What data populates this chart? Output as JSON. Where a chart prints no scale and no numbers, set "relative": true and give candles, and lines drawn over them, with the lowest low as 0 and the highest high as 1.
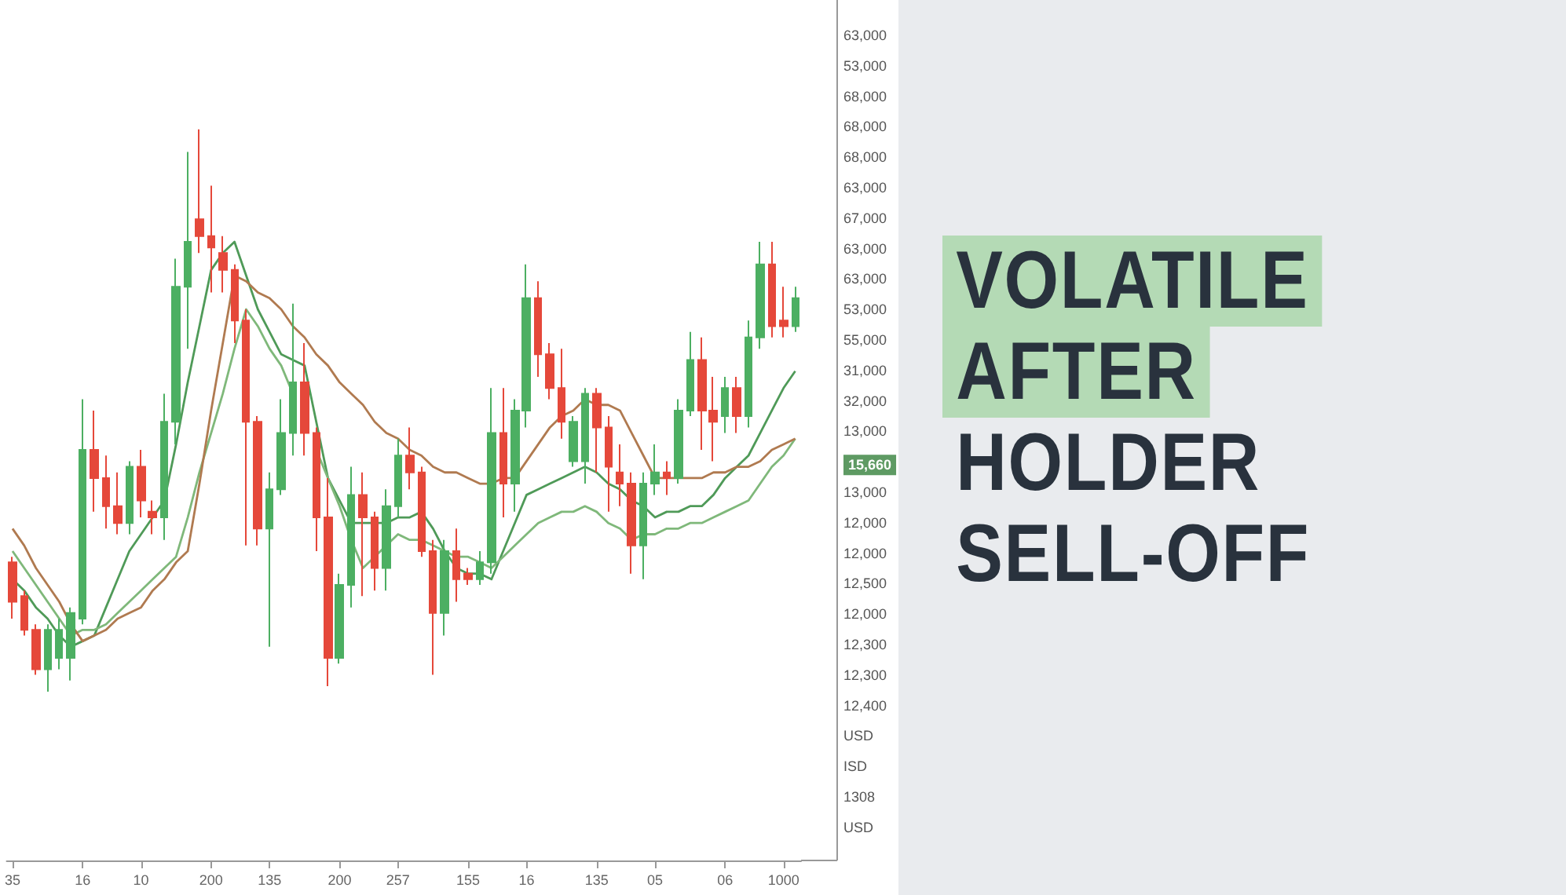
{
  "chart_data": {
    "type": "candlestick",
    "title": "VOLATILE AFTER HOLDER SELL-OFF",
    "relative": true,
    "marker": "none",
    "categories": [
      "35",
      null,
      null,
      null,
      null,
      null,
      "16",
      null,
      null,
      null,
      null,
      "10",
      null,
      null,
      null,
      null,
      null,
      "200",
      null,
      null,
      null,
      null,
      "135",
      null,
      null,
      null,
      null,
      null,
      "200",
      null,
      null,
      null,
      null,
      "257",
      null,
      null,
      null,
      null,
      null,
      "155",
      null,
      null,
      null,
      null,
      "16",
      null,
      null,
      null,
      null,
      null,
      "135",
      null,
      null,
      null,
      null,
      "05",
      null,
      null,
      null,
      null,
      null,
      "06",
      null,
      null,
      null,
      null,
      "1000",
      null
    ],
    "ohlc": [
      [
        0.23,
        0.24,
        0.13,
        0.16
      ],
      [
        0.17,
        0.18,
        0.1,
        0.11
      ],
      [
        0.11,
        0.12,
        0.03,
        0.04
      ],
      [
        0.04,
        0.12,
        0,
        0.11
      ],
      [
        0.06,
        0.13,
        0.04,
        0.11
      ],
      [
        0.06,
        0.15,
        0.02,
        0.14
      ],
      [
        0.13,
        0.52,
        0.12,
        0.43
      ],
      [
        0.43,
        0.5,
        0.32,
        0.38
      ],
      [
        0.38,
        0.42,
        0.29,
        0.33
      ],
      [
        0.33,
        0.39,
        0.28,
        0.3
      ],
      [
        0.3,
        0.41,
        0.28,
        0.4
      ],
      [
        0.4,
        0.43,
        0.31,
        0.34
      ],
      [
        0.32,
        0.34,
        0.28,
        0.31
      ],
      [
        0.31,
        0.53,
        0.27,
        0.48
      ],
      [
        0.48,
        0.77,
        0.44,
        0.72
      ],
      [
        0.72,
        0.96,
        0.61,
        0.8
      ],
      [
        0.84,
        1,
        0.78,
        0.81
      ],
      [
        0.81,
        0.9,
        0.71,
        0.79
      ],
      [
        0.78,
        0.81,
        0.71,
        0.75
      ],
      [
        0.75,
        0.76,
        0.62,
        0.66
      ],
      [
        0.66,
        0.68,
        0.26,
        0.48
      ],
      [
        0.48,
        0.49,
        0.26,
        0.29
      ],
      [
        0.29,
        0.39,
        0.08,
        0.36
      ],
      [
        0.36,
        0.52,
        0.35,
        0.46
      ],
      [
        0.46,
        0.69,
        0.42,
        0.55
      ],
      [
        0.55,
        0.62,
        0.42,
        0.46
      ],
      [
        0.46,
        0.47,
        0.25,
        0.31
      ],
      [
        0.31,
        0.38,
        0.01,
        0.06
      ],
      [
        0.06,
        0.21,
        0.05,
        0.19
      ],
      [
        0.19,
        0.4,
        0.15,
        0.35
      ],
      [
        0.35,
        0.39,
        0.17,
        0.31
      ],
      [
        0.31,
        0.32,
        0.18,
        0.22
      ],
      [
        0.22,
        0.36,
        0.18,
        0.33
      ],
      [
        0.33,
        0.45,
        0.31,
        0.42
      ],
      [
        0.42,
        0.47,
        0.36,
        0.39
      ],
      [
        0.39,
        0.4,
        0.24,
        0.25
      ],
      [
        0.25,
        0.27,
        0.03,
        0.14
      ],
      [
        0.14,
        0.27,
        0.1,
        0.25
      ],
      [
        0.25,
        0.29,
        0.16,
        0.2
      ],
      [
        0.21,
        0.22,
        0.19,
        0.2
      ],
      [
        0.2,
        0.25,
        0.19,
        0.23
      ],
      [
        0.23,
        0.54,
        0.21,
        0.46
      ],
      [
        0.46,
        0.54,
        0.31,
        0.37
      ],
      [
        0.37,
        0.52,
        0.32,
        0.5
      ],
      [
        0.5,
        0.76,
        0.47,
        0.7
      ],
      [
        0.7,
        0.73,
        0.56,
        0.6
      ],
      [
        0.6,
        0.62,
        0.52,
        0.54
      ],
      [
        0.54,
        0.61,
        0.45,
        0.48
      ],
      [
        0.41,
        0.49,
        0.4,
        0.48
      ],
      [
        0.41,
        0.54,
        0.37,
        0.53
      ],
      [
        0.53,
        0.54,
        0.39,
        0.47
      ],
      [
        0.47,
        0.49,
        0.32,
        0.4
      ],
      [
        0.39,
        0.44,
        0.33,
        0.37
      ],
      [
        0.37,
        0.39,
        0.21,
        0.26
      ],
      [
        0.26,
        0.39,
        0.2,
        0.37
      ],
      [
        0.37,
        0.44,
        0.35,
        0.39
      ],
      [
        0.39,
        0.41,
        0.35,
        0.38
      ],
      [
        0.38,
        0.52,
        0.37,
        0.5
      ],
      [
        0.5,
        0.64,
        0.49,
        0.59
      ],
      [
        0.59,
        0.63,
        0.43,
        0.5
      ],
      [
        0.5,
        0.56,
        0.41,
        0.48
      ],
      [
        0.49,
        0.56,
        0.46,
        0.54
      ],
      [
        0.54,
        0.56,
        0.46,
        0.49
      ],
      [
        0.49,
        0.66,
        0.47,
        0.63
      ],
      [
        0.63,
        0.8,
        0.61,
        0.76
      ],
      [
        0.76,
        0.8,
        0.63,
        0.65
      ],
      [
        0.66,
        0.72,
        0.63,
        0.65
      ],
      [
        0.65,
        0.72,
        0.64,
        0.7
      ]
    ],
    "series": [
      {
        "type": "line",
        "color": "#4f9a58",
        "values": [
          0.2,
          0.18,
          0.15,
          0.13,
          0.1,
          0.08,
          0.09,
          0.1,
          0.15,
          0.2,
          0.25,
          0.28,
          0.31,
          0.34,
          0.44,
          0.55,
          0.65,
          0.75,
          0.78,
          0.8,
          0.74,
          0.68,
          0.64,
          0.6,
          0.59,
          0.58,
          0.48,
          0.38,
          0.34,
          0.3,
          0.3,
          0.3,
          0.3,
          0.31,
          0.31,
          0.32,
          0.29,
          0.25,
          0.22,
          0.21,
          0.21,
          0.2,
          0.25,
          0.3,
          0.35,
          0.36,
          0.37,
          0.38,
          0.39,
          0.4,
          0.39,
          0.37,
          0.36,
          0.34,
          0.33,
          0.31,
          0.32,
          0.32,
          0.33,
          0.33,
          0.35,
          0.38,
          0.4,
          0.42,
          0.46,
          0.5,
          0.54,
          0.57
        ]
      },
      {
        "type": "line",
        "color": "#7fb87a",
        "values": [
          0.25,
          0.22,
          0.19,
          0.16,
          0.13,
          0.1,
          0.11,
          0.11,
          0.12,
          0.14,
          0.16,
          0.18,
          0.2,
          0.22,
          0.24,
          0.31,
          0.39,
          0.46,
          0.53,
          0.61,
          0.68,
          0.65,
          0.61,
          0.58,
          0.53,
          null,
          0.43,
          0.38,
          0.33,
          0.27,
          0.22,
          0.24,
          0.26,
          0.28,
          0.27,
          0.27,
          0.26,
          0.25,
          0.24,
          0.24,
          0.23,
          0.22,
          0.24,
          0.26,
          0.28,
          0.3,
          0.31,
          0.32,
          0.32,
          0.33,
          0.32,
          0.3,
          0.29,
          0.27,
          0.28,
          0.28,
          0.29,
          0.29,
          0.3,
          0.3,
          0.31,
          0.32,
          0.33,
          0.34,
          0.37,
          0.4,
          0.42,
          0.45
        ]
      },
      {
        "type": "line",
        "color": "#b07a50",
        "values": [
          0.29,
          0.26,
          0.22,
          0.19,
          0.16,
          0.12,
          0.09,
          0.1,
          0.11,
          0.13,
          0.14,
          0.15,
          0.18,
          0.2,
          0.23,
          0.25,
          0.37,
          0.5,
          0.62,
          0.74,
          0.73,
          0.71,
          0.7,
          0.68,
          0.65,
          0.63,
          0.6,
          0.58,
          0.55,
          0.53,
          0.51,
          0.48,
          0.46,
          0.45,
          0.43,
          0.42,
          0.4,
          0.39,
          0.39,
          0.38,
          0.37,
          0.37,
          0.38,
          0.38,
          0.41,
          0.44,
          0.47,
          0.49,
          0.5,
          0.52,
          0.51,
          0.51,
          0.5,
          0.46,
          0.42,
          0.38,
          0.38,
          0.38,
          0.38,
          0.38,
          0.39,
          0.39,
          0.4,
          0.4,
          0.41,
          0.43,
          0.44,
          0.45
        ]
      }
    ],
    "annotations": [
      "63,000",
      "53,000",
      "68,000",
      "68,000",
      "68,000",
      "63,000",
      "67,000",
      "63,000",
      "63,000",
      "53,000",
      "55,000",
      "31,000",
      "32,000",
      "13,000",
      "15,660",
      "13,000",
      "12,000",
      "12,000",
      "12,500",
      "12,000",
      "12,300",
      "12,300",
      "12,400",
      "USD",
      "ISD",
      "1308",
      "USD"
    ]
  }
}
